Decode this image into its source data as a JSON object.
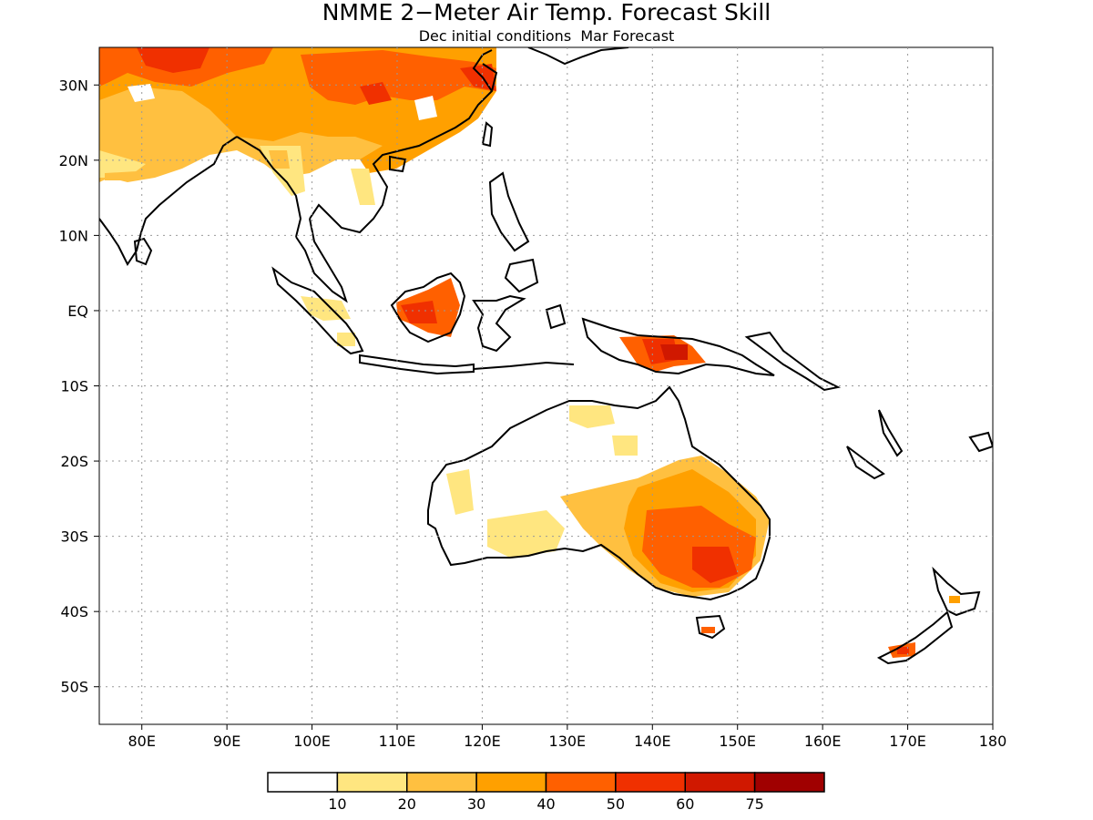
{
  "title": "NMME 2−Meter Air Temp. Forecast Skill",
  "subtitle": "Dec initial conditions  Mar Forecast",
  "map": {
    "lon_range": [
      75,
      180
    ],
    "lat_range": [
      -55,
      35
    ],
    "gridlines": "dotted",
    "x_ticks": [
      "80E",
      "90E",
      "100E",
      "110E",
      "120E",
      "130E",
      "140E",
      "150E",
      "160E",
      "170E",
      "180"
    ],
    "y_ticks": [
      "30N",
      "20N",
      "10N",
      "EQ",
      "10S",
      "20S",
      "30S",
      "40S",
      "50S"
    ]
  },
  "colorbar": {
    "colors": [
      "#ffffff",
      "#ffe680",
      "#ffc040",
      "#ffa000",
      "#ff6000",
      "#f03000",
      "#d01800",
      "#a00000"
    ],
    "labels": [
      "10",
      "20",
      "30",
      "40",
      "50",
      "60",
      "75"
    ]
  }
}
